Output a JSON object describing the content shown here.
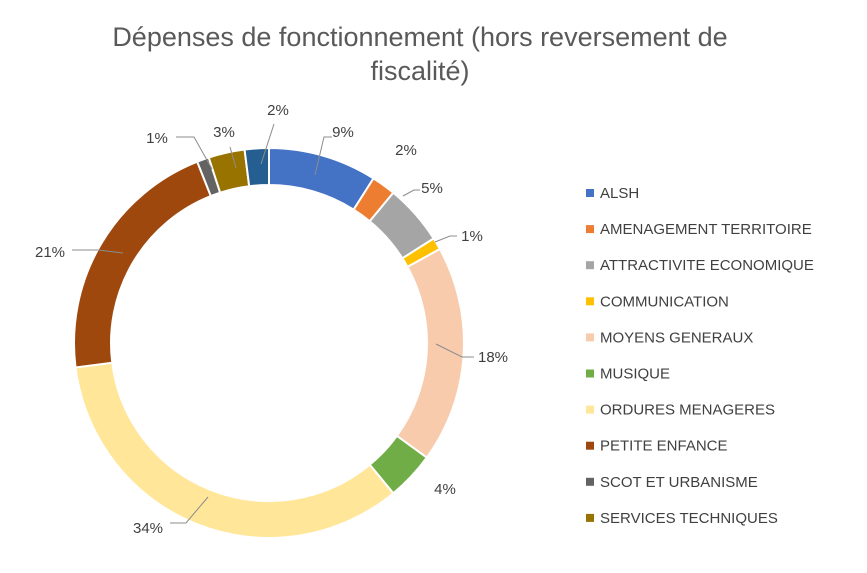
{
  "chart_data": {
    "type": "pie",
    "variant": "doughnut",
    "title": "Dépenses de fonctionnement (hors reversement de fiscalité)",
    "title_lines": [
      "Dépenses de fonctionnement (hors reversement de",
      "fiscalité)"
    ],
    "legend_position": "right",
    "categories": [
      "ALSH",
      "AMENAGEMENT TERRITOIRE",
      "ATTRACTIVITE ECONOMIQUE",
      "COMMUNICATION",
      "MOYENS GENERAUX",
      "MUSIQUE",
      "ORDURES MENAGERES",
      "PETITE ENFANCE",
      "SCOT ET URBANISME",
      "SERVICES TECHNIQUES",
      ""
    ],
    "values": [
      9,
      2,
      5,
      1,
      18,
      4,
      34,
      21,
      1,
      3,
      2
    ],
    "labels": [
      "9%",
      "2%",
      "5%",
      "1%",
      "18%",
      "4%",
      "34%",
      "21%",
      "1%",
      "3%",
      "2%"
    ],
    "colors": [
      "#4472c4",
      "#ed7d31",
      "#a5a5a5",
      "#ffc000",
      "#f8cbad",
      "#70ad47",
      "#ffe699",
      "#9e480e",
      "#636363",
      "#997300",
      "#255e91"
    ],
    "legend_entries": [
      "ALSH",
      "AMENAGEMENT TERRITOIRE",
      "ATTRACTIVITE ECONOMIQUE",
      "COMMUNICATION",
      "MOYENS GENERAUX",
      "MUSIQUE",
      "ORDURES MENAGERES",
      "PETITE ENFANCE",
      "SCOT ET URBANISME",
      "SERVICES TECHNIQUES"
    ]
  }
}
